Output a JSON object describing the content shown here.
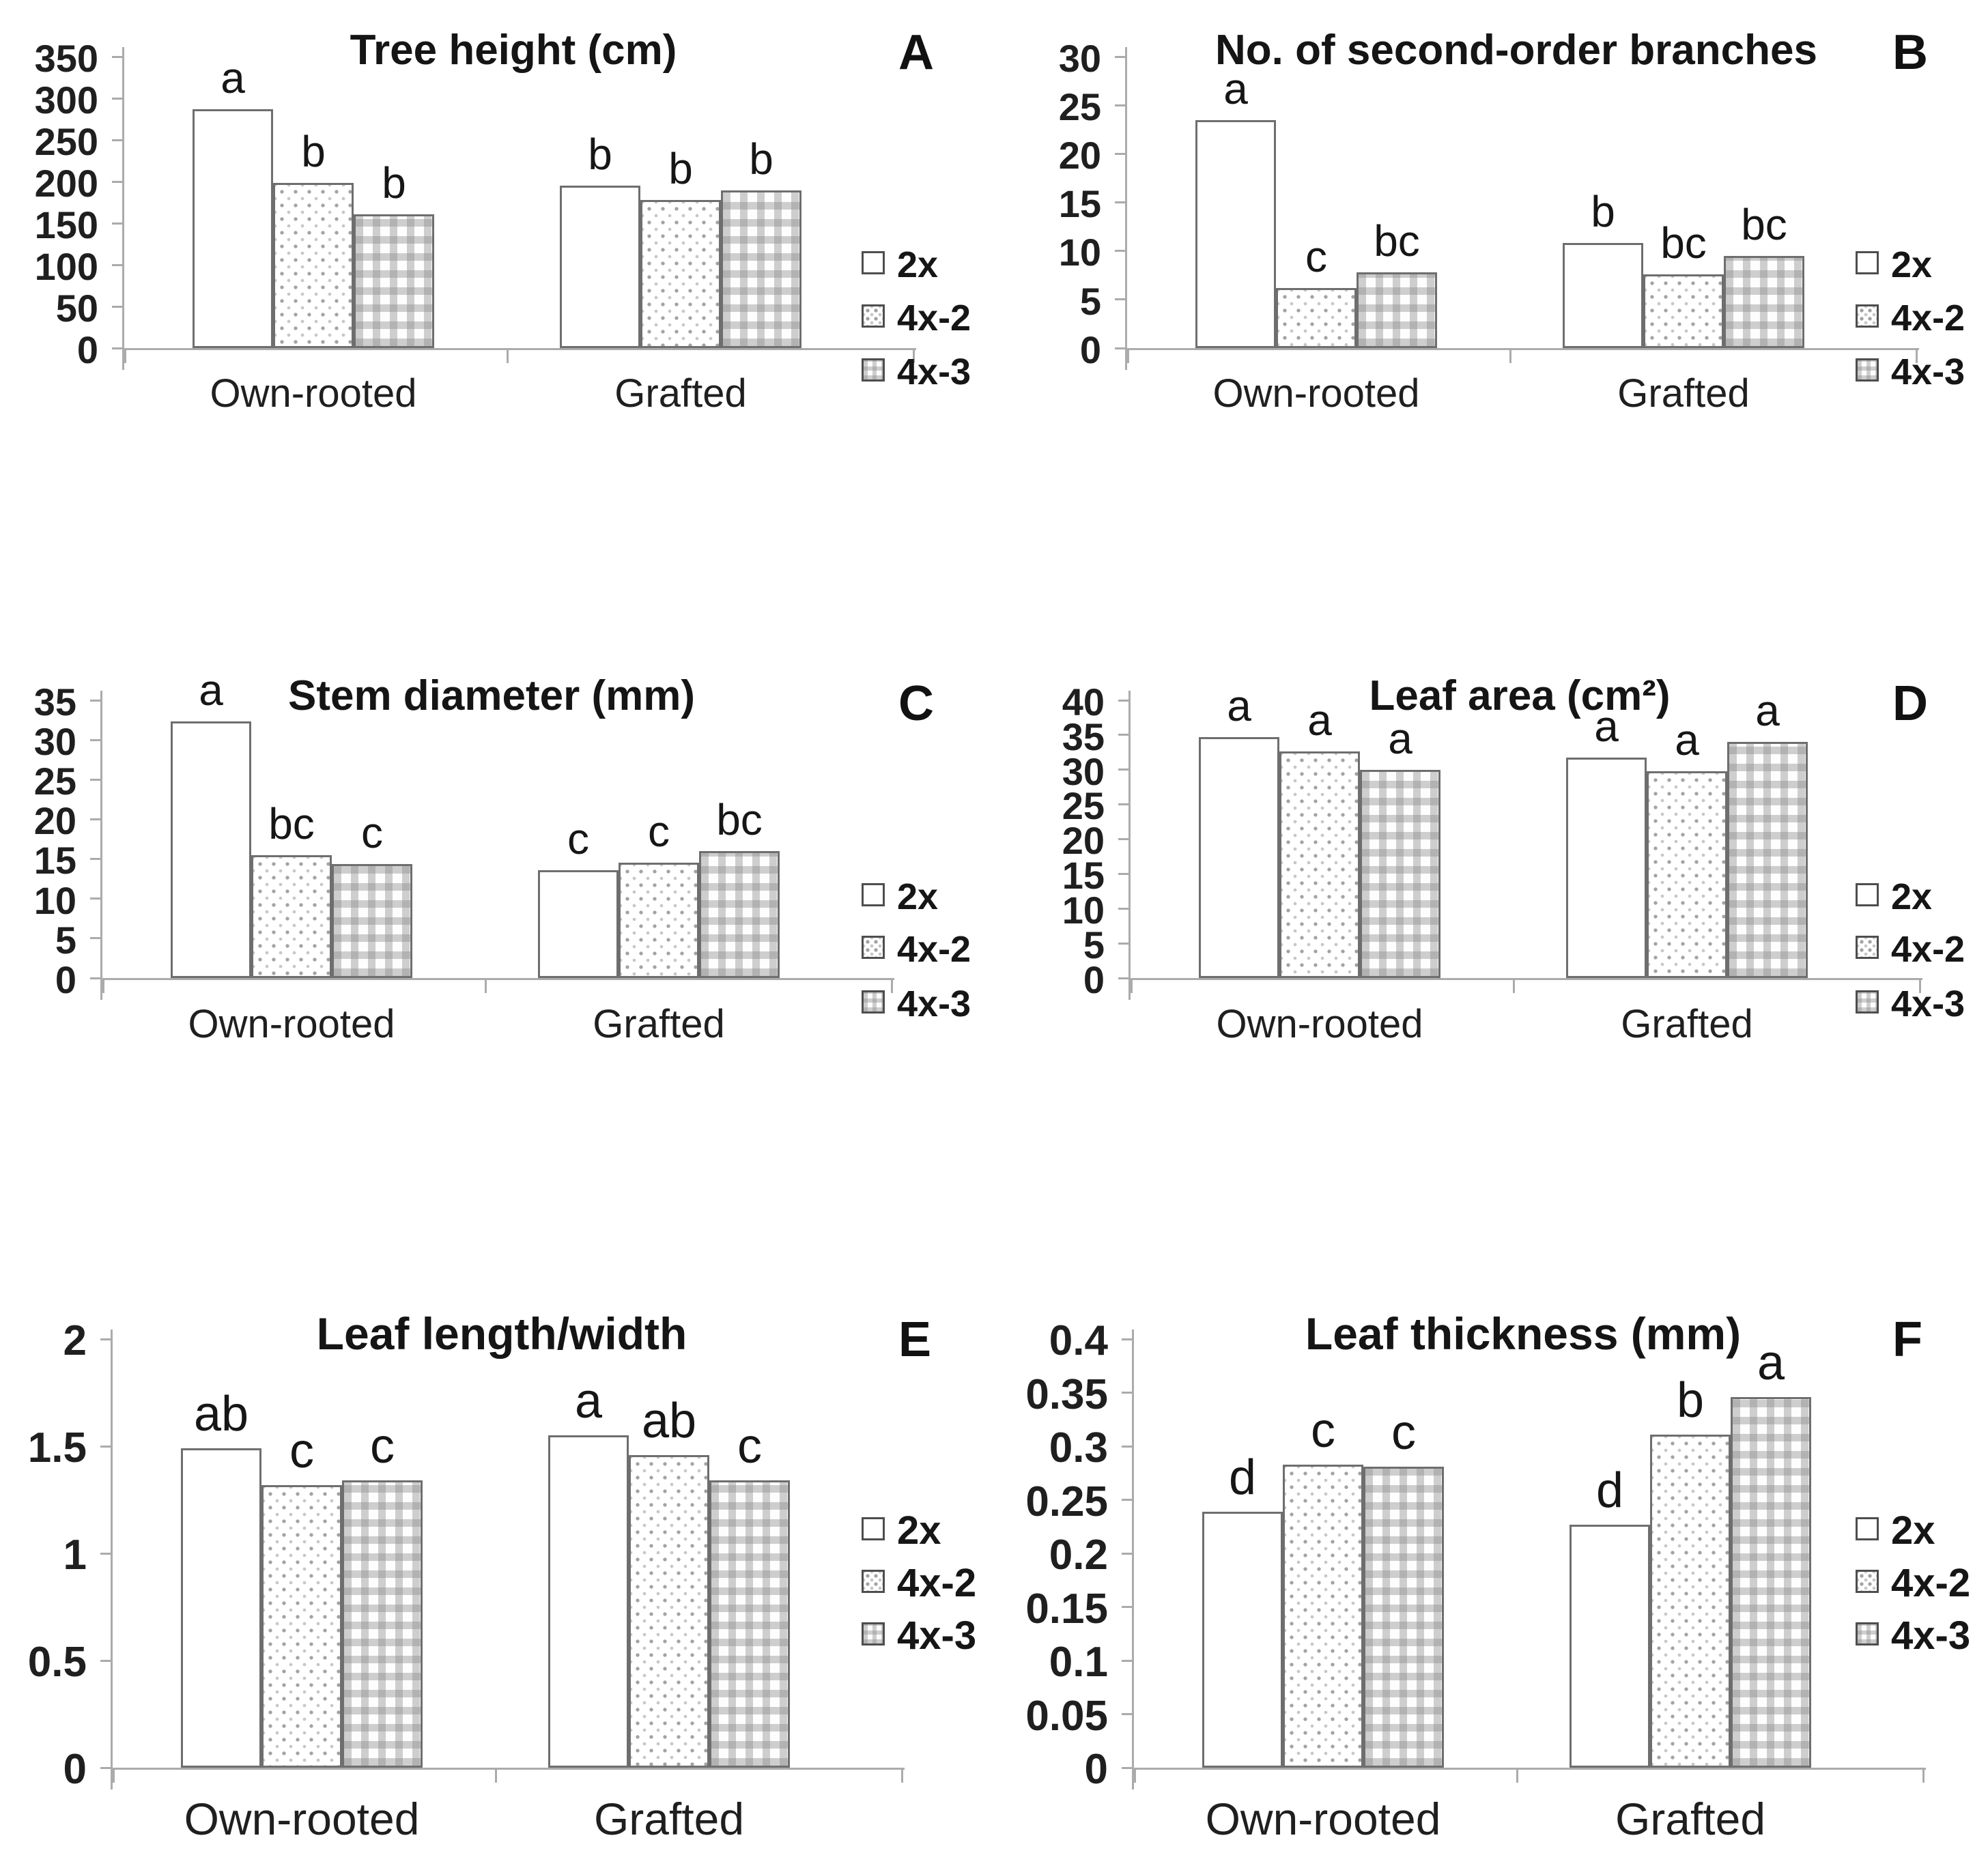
{
  "figure": {
    "background": "#ffffff",
    "axis_color": "#ababab",
    "bar_border_color": "#6e6e6e",
    "text_color": "#1a1a1a",
    "group_labels": [
      "Own-rooted",
      "Grafted"
    ],
    "legend_items": [
      {
        "label": "2x",
        "pattern": "plain-white"
      },
      {
        "label": "4x-2",
        "pattern": "fine-dots"
      },
      {
        "label": "4x-3",
        "pattern": "checkered"
      }
    ]
  },
  "chart_data": [
    {
      "type": "bar",
      "panel": "A",
      "title": "Tree height (cm)",
      "categories": [
        "Own-rooted",
        "Grafted"
      ],
      "ylim": [
        0,
        350
      ],
      "ytick_step": 50,
      "yticks": [
        "0",
        "50",
        "100",
        "150",
        "200",
        "250",
        "300",
        "350"
      ],
      "grid": false,
      "legend_position": "right",
      "series": [
        {
          "name": "2x",
          "values": [
            287,
            195
          ],
          "letters": [
            "a",
            "b"
          ]
        },
        {
          "name": "4x-2",
          "values": [
            198,
            178
          ],
          "letters": [
            "b",
            "b"
          ]
        },
        {
          "name": "4x-3",
          "values": [
            161,
            189
          ],
          "letters": [
            "b",
            "b"
          ]
        }
      ]
    },
    {
      "type": "bar",
      "panel": "B",
      "title": "No. of second-order branches",
      "categories": [
        "Own-rooted",
        "Grafted"
      ],
      "ylim": [
        0,
        30
      ],
      "ytick_step": 5,
      "yticks": [
        "0",
        "5",
        "10",
        "15",
        "20",
        "25",
        "30"
      ],
      "grid": false,
      "legend_position": "right",
      "series": [
        {
          "name": "2x",
          "values": [
            23.5,
            10.8
          ],
          "letters": [
            "a",
            "b"
          ]
        },
        {
          "name": "4x-2",
          "values": [
            6.2,
            7.6
          ],
          "letters": [
            "c",
            "bc"
          ]
        },
        {
          "name": "4x-3",
          "values": [
            7.8,
            9.5
          ],
          "letters": [
            "bc",
            "bc"
          ]
        }
      ]
    },
    {
      "type": "bar",
      "panel": "C",
      "title": "Stem diameter (mm)",
      "categories": [
        "Own-rooted",
        "Grafted"
      ],
      "ylim": [
        0,
        35
      ],
      "ytick_step": 5,
      "yticks": [
        "0",
        "5",
        "10",
        "15",
        "20",
        "25",
        "30",
        "35"
      ],
      "grid": false,
      "legend_position": "right",
      "series": [
        {
          "name": "2x",
          "values": [
            32.3,
            13.6
          ],
          "letters": [
            "a",
            "c"
          ]
        },
        {
          "name": "4x-2",
          "values": [
            15.5,
            14.5
          ],
          "letters": [
            "bc",
            "c"
          ]
        },
        {
          "name": "4x-3",
          "values": [
            14.4,
            16.0
          ],
          "letters": [
            "c",
            "bc"
          ]
        }
      ]
    },
    {
      "type": "bar",
      "panel": "D",
      "title": "Leaf area (cm²)",
      "categories": [
        "Own-rooted",
        "Grafted"
      ],
      "ylim": [
        0,
        40
      ],
      "ytick_step": 5,
      "yticks": [
        "0",
        "5",
        "10",
        "15",
        "20",
        "25",
        "30",
        "35",
        "40"
      ],
      "grid": false,
      "legend_position": "right",
      "series": [
        {
          "name": "2x",
          "values": [
            34.7,
            31.7
          ],
          "letters": [
            "a",
            "a"
          ]
        },
        {
          "name": "4x-2",
          "values": [
            32.6,
            29.8
          ],
          "letters": [
            "a",
            "a"
          ]
        },
        {
          "name": "4x-3",
          "values": [
            30.0,
            34.0
          ],
          "letters": [
            "a",
            "a"
          ]
        }
      ]
    },
    {
      "type": "bar",
      "panel": "E",
      "title": "Leaf length/width",
      "categories": [
        "Own-rooted",
        "Grafted"
      ],
      "ylim": [
        0,
        2
      ],
      "ytick_step": 0.5,
      "yticks": [
        "0",
        "0.5",
        "1",
        "1.5",
        "2"
      ],
      "grid": false,
      "legend_position": "right",
      "series": [
        {
          "name": "2x",
          "values": [
            1.49,
            1.55
          ],
          "letters": [
            "ab",
            "a"
          ]
        },
        {
          "name": "4x-2",
          "values": [
            1.32,
            1.46
          ],
          "letters": [
            "c",
            "ab"
          ]
        },
        {
          "name": "4x-3",
          "values": [
            1.34,
            1.34
          ],
          "letters": [
            "c",
            "c"
          ]
        }
      ]
    },
    {
      "type": "bar",
      "panel": "F",
      "title": "Leaf thickness (mm)",
      "categories": [
        "Own-rooted",
        "Grafted"
      ],
      "ylim": [
        0,
        0.4
      ],
      "ytick_step": 0.05,
      "yticks": [
        "0",
        "0.05",
        "0.1",
        "0.15",
        "0.2",
        "0.25",
        "0.3",
        "0.35",
        "0.4"
      ],
      "grid": false,
      "legend_position": "right",
      "series": [
        {
          "name": "2x",
          "values": [
            0.239,
            0.227
          ],
          "letters": [
            "d",
            "d"
          ]
        },
        {
          "name": "4x-2",
          "values": [
            0.283,
            0.311
          ],
          "letters": [
            "c",
            "b"
          ]
        },
        {
          "name": "4x-3",
          "values": [
            0.281,
            0.346
          ],
          "letters": [
            "c",
            "a"
          ]
        }
      ]
    }
  ]
}
